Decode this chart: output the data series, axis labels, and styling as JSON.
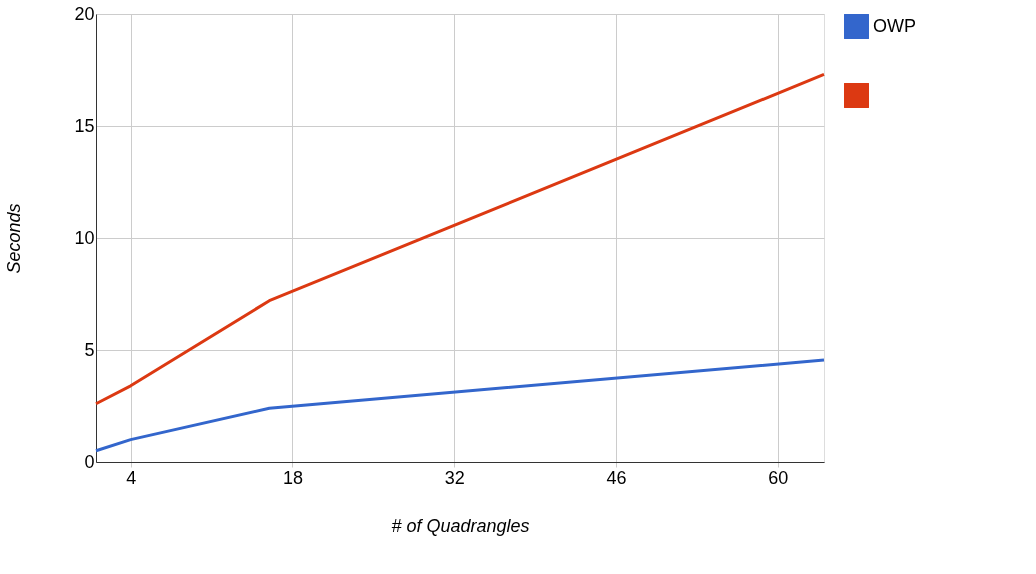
{
  "chart_data": {
    "type": "line",
    "xlabel": "# of Quadrangles",
    "ylabel": "Seconds",
    "x": [
      1,
      4,
      16,
      64
    ],
    "series": [
      {
        "name": "OWP",
        "color": "#3366cc",
        "values": [
          0.5,
          1.0,
          2.4,
          4.55
        ]
      },
      {
        "color": "#dc3912",
        "values": [
          2.6,
          3.4,
          7.2,
          17.3
        ]
      }
    ],
    "xlim": [
      1,
      64
    ],
    "xticks": [
      4,
      18,
      32,
      46,
      60
    ],
    "ylim": [
      0,
      20
    ],
    "yticks": [
      0,
      5,
      10,
      15,
      20
    ],
    "grid": true,
    "legend": "top right",
    "marker": "none",
    "line_style": "solid"
  }
}
